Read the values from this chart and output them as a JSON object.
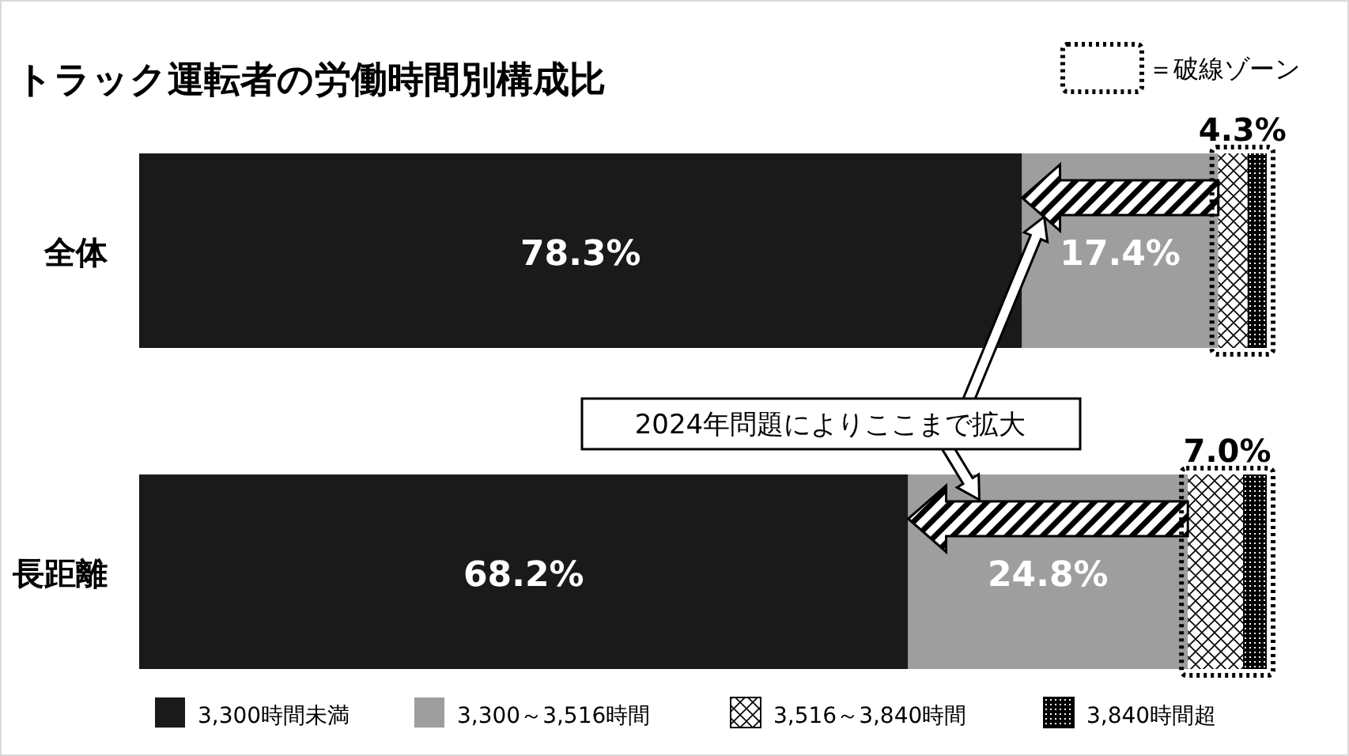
{
  "chart_data": {
    "type": "bar",
    "orientation": "horizontal",
    "stacked": true,
    "title": "トラック運転者の労働時間別構成比",
    "categories": [
      "全体",
      "長距離"
    ],
    "legend": "bottom",
    "series": [
      {
        "name": "3,300時間未満",
        "color": "#1a1a1a",
        "values": [
          78.3,
          68.2
        ],
        "value_labels": [
          "78.3%",
          "68.2%"
        ]
      },
      {
        "name": "3,300～3,516時間",
        "color": "#9e9e9e",
        "values": [
          17.4,
          24.8
        ],
        "value_labels": [
          "17.4%",
          "24.8%"
        ]
      },
      {
        "name": "3,516～3,840時間",
        "color": "#000000",
        "values": [
          2.6,
          4.9
        ]
      },
      {
        "name": "3,840時間超",
        "color": "#000000",
        "values": [
          1.7,
          2.1
        ]
      }
    ],
    "annotations": [
      "4.3%",
      "7.0%",
      "2024年問題によりここまで拡大",
      "＝破線ゾーン"
    ]
  }
}
